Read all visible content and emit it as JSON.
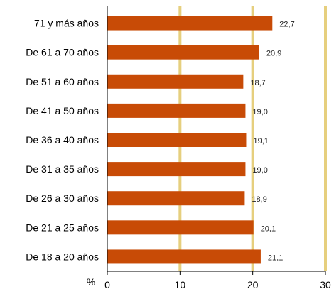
{
  "chart_data": {
    "type": "bar",
    "orientation": "horizontal",
    "categories": [
      "71 y más años",
      "De 61 a 70 años",
      "De 51 a 60 años",
      "De 41 a 50 años",
      "De 36 a 40 años",
      "De 31 a 35 años",
      "De 26 a 30 años",
      "De 21 a 25 años",
      "De 18 a 20 años"
    ],
    "values": [
      22.7,
      20.9,
      18.7,
      19.0,
      19.1,
      19.0,
      18.9,
      20.1,
      21.1
    ],
    "value_labels": [
      "22,7",
      "20,9",
      "18,7",
      "19,0",
      "19,1",
      "19,0",
      "18,9",
      "20,1",
      "21,1"
    ],
    "xlim": [
      0,
      30
    ],
    "xticks": [
      0,
      10,
      20,
      30
    ],
    "xtick_labels": [
      "0",
      "10",
      "20",
      "30"
    ],
    "unit_label": "%",
    "grid": "vertical",
    "colors": {
      "bar": "#C84B06",
      "grid": "#E6CF7E",
      "axis": "#000000"
    }
  }
}
